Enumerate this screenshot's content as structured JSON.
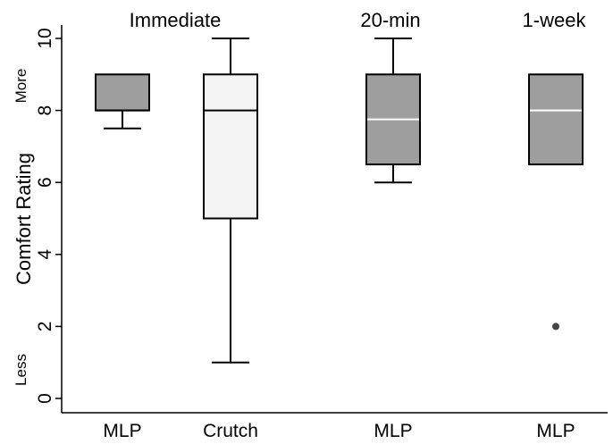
{
  "chart_data": {
    "type": "box",
    "title": "",
    "ylabel": "Comfort Rating",
    "ylim": [
      0,
      10
    ],
    "yticks": [
      0,
      2,
      4,
      6,
      8,
      10
    ],
    "y_annotations": {
      "top": "More",
      "bottom": "Less"
    },
    "groups": [
      {
        "label": "Immediate"
      },
      {
        "label": "20-min"
      },
      {
        "label": "1-week"
      }
    ],
    "boxes": [
      {
        "category": "MLP",
        "group": "Immediate",
        "min": 7.5,
        "q1": 8.0,
        "median": 8.0,
        "q3": 9.0,
        "max": 9.0,
        "outliers": [],
        "fill": "#9e9e9e",
        "median_color": "#000000"
      },
      {
        "category": "Crutch",
        "group": "Immediate",
        "min": 1.0,
        "q1": 5.0,
        "median": 8.0,
        "q3": 9.0,
        "max": 10.0,
        "outliers": [],
        "fill": "#f4f4f4",
        "median_color": "#000000"
      },
      {
        "category": "MLP",
        "group": "20-min",
        "min": 6.0,
        "q1": 6.5,
        "median": 7.75,
        "q3": 9.0,
        "max": 10.0,
        "outliers": [],
        "fill": "#9e9e9e",
        "median_color": "#ffffff"
      },
      {
        "category": "MLP",
        "group": "1-week",
        "min": 6.5,
        "q1": 6.5,
        "median": 8.0,
        "q3": 9.0,
        "max": 9.0,
        "outliers": [
          2
        ],
        "fill": "#9e9e9e",
        "median_color": "#ffffff"
      }
    ]
  }
}
